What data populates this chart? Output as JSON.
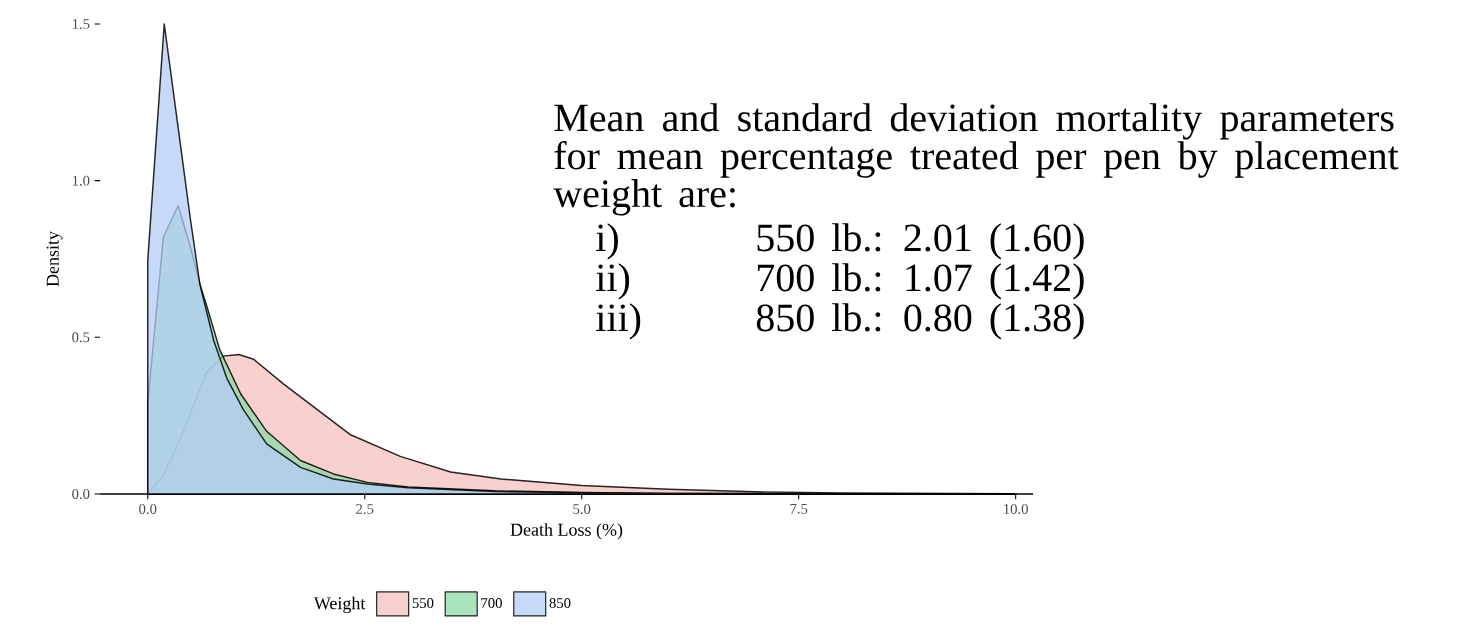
{
  "chart_data": {
    "type": "area",
    "xlabel": "Death Loss (%)",
    "ylabel": "Density",
    "legend_title": "Weight",
    "legend": "bottom",
    "xlim": [
      -0.55,
      10.2
    ],
    "ylim": [
      0,
      1.5
    ],
    "xticks": [
      {
        "value": 0,
        "label": "0.0"
      },
      {
        "value": 2.5,
        "label": "2.5"
      },
      {
        "value": 5,
        "label": "5.0"
      },
      {
        "value": 7.5,
        "label": "7.5"
      },
      {
        "value": 10,
        "label": "10.0"
      }
    ],
    "yticks": [
      {
        "value": 0,
        "label": "0.0"
      },
      {
        "value": 0.5,
        "label": "0.5"
      },
      {
        "value": 1,
        "label": "1.0"
      },
      {
        "value": 1.5,
        "label": "1.5"
      }
    ],
    "series": [
      {
        "name": "550",
        "color": "#f5c0bc",
        "x": [
          0,
          0.18,
          0.41,
          0.68,
          0.87,
          1.05,
          1.22,
          1.57,
          1.95,
          2.33,
          2.91,
          3.49,
          4.07,
          5,
          6,
          7,
          8,
          10
        ],
        "values": [
          0,
          0.06,
          0.2,
          0.39,
          0.44,
          0.445,
          0.43,
          0.35,
          0.27,
          0.19,
          0.12,
          0.07,
          0.048,
          0.027,
          0.015,
          0.007,
          0.003,
          0.001
        ]
      },
      {
        "name": "700",
        "color": "#8fd9a6",
        "x": [
          0,
          0.18,
          0.35,
          0.49,
          0.6,
          0.68,
          0.83,
          1.07,
          1.37,
          1.76,
          2.14,
          2.53,
          3,
          4,
          5,
          6,
          8,
          10
        ],
        "values": [
          0.29,
          0.82,
          0.92,
          0.79,
          0.67,
          0.6,
          0.46,
          0.32,
          0.2,
          0.107,
          0.064,
          0.037,
          0.022,
          0.01,
          0.005,
          0.002,
          0.001,
          0
        ]
      },
      {
        "name": "850",
        "color": "#b4ccf7",
        "x": [
          0,
          0.19,
          0.35,
          0.49,
          0.6,
          0.76,
          0.91,
          1.1,
          1.37,
          1.76,
          2.14,
          2.53,
          3,
          4,
          5,
          6,
          8,
          10
        ],
        "values": [
          0.745,
          1.5,
          1.17,
          0.88,
          0.67,
          0.49,
          0.37,
          0.27,
          0.16,
          0.085,
          0.048,
          0.032,
          0.02,
          0.008,
          0.004,
          0.002,
          0.001,
          0
        ]
      }
    ],
    "annotations": [
      "Mean and standard deviation mortality parameters for mean percentage treated per pen by placement weight are:",
      "i)",
      "550 lb.: 2.01 (1.60)",
      "ii)",
      "700 lb.: 1.07 (1.42)",
      "iii)",
      "850 lb.: 0.80 (1.38)"
    ]
  }
}
